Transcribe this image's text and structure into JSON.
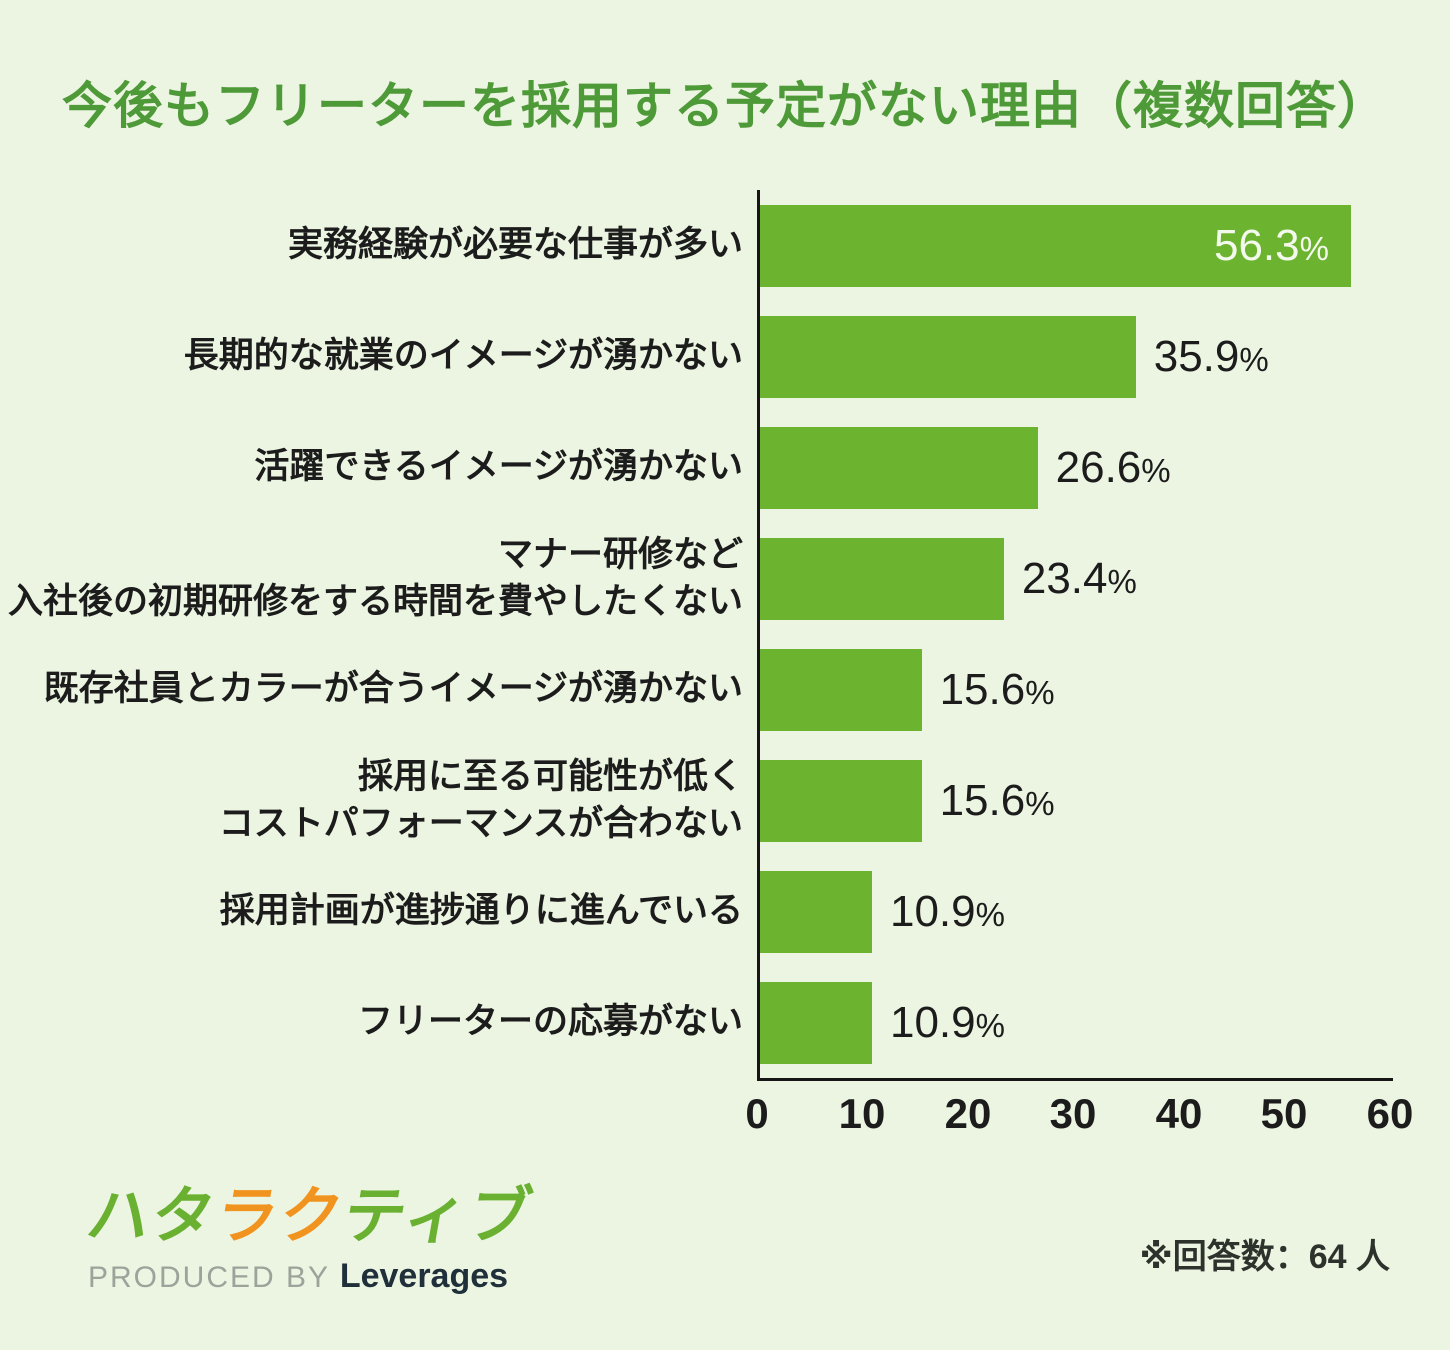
{
  "title": "今後もフリーターを採用する予定がない理由（複数回答）",
  "chart_data": {
    "type": "bar",
    "orientation": "horizontal",
    "title": "今後もフリーターを採用する予定がない理由（複数回答）",
    "categories": [
      "実務経験が必要な仕事が多い",
      "長期的な就業のイメージが湧かない",
      "活躍できるイメージが湧かない",
      "マナー研修など\n入社後の初期研修をする時間を費やしたくない",
      "既存社員とカラーが合うイメージが湧かない",
      "採用に至る可能性が低く\nコストパフォーマンスが合わない",
      "採用計画が進捗通りに進んでいる",
      "フリーターの応募がない"
    ],
    "values": [
      56.3,
      35.9,
      26.6,
      23.4,
      15.6,
      15.6,
      10.9,
      10.9
    ],
    "percent_suffix": "%",
    "xlabel": "",
    "ylabel": "",
    "xlim": [
      0,
      60
    ],
    "xticks": [
      0,
      10,
      20,
      30,
      40,
      50,
      60
    ],
    "grid": false,
    "legend": false,
    "bar_color": "#6cb42f",
    "background_color": "#ecf5e2",
    "title_color": "#4e9a38",
    "first_value_label_placement": "inside-white",
    "other_value_label_placement": "outside-dark"
  },
  "footer": {
    "logo": {
      "segments": [
        {
          "text": "ハタ",
          "color": "#6ab132"
        },
        {
          "text": "ラク",
          "color": "#f1931f"
        },
        {
          "text": "ティブ",
          "color": "#6ab132"
        }
      ]
    },
    "produced_by": "PRODUCED BY ",
    "brand": "Leverages",
    "note": "※回答数：64 人"
  }
}
